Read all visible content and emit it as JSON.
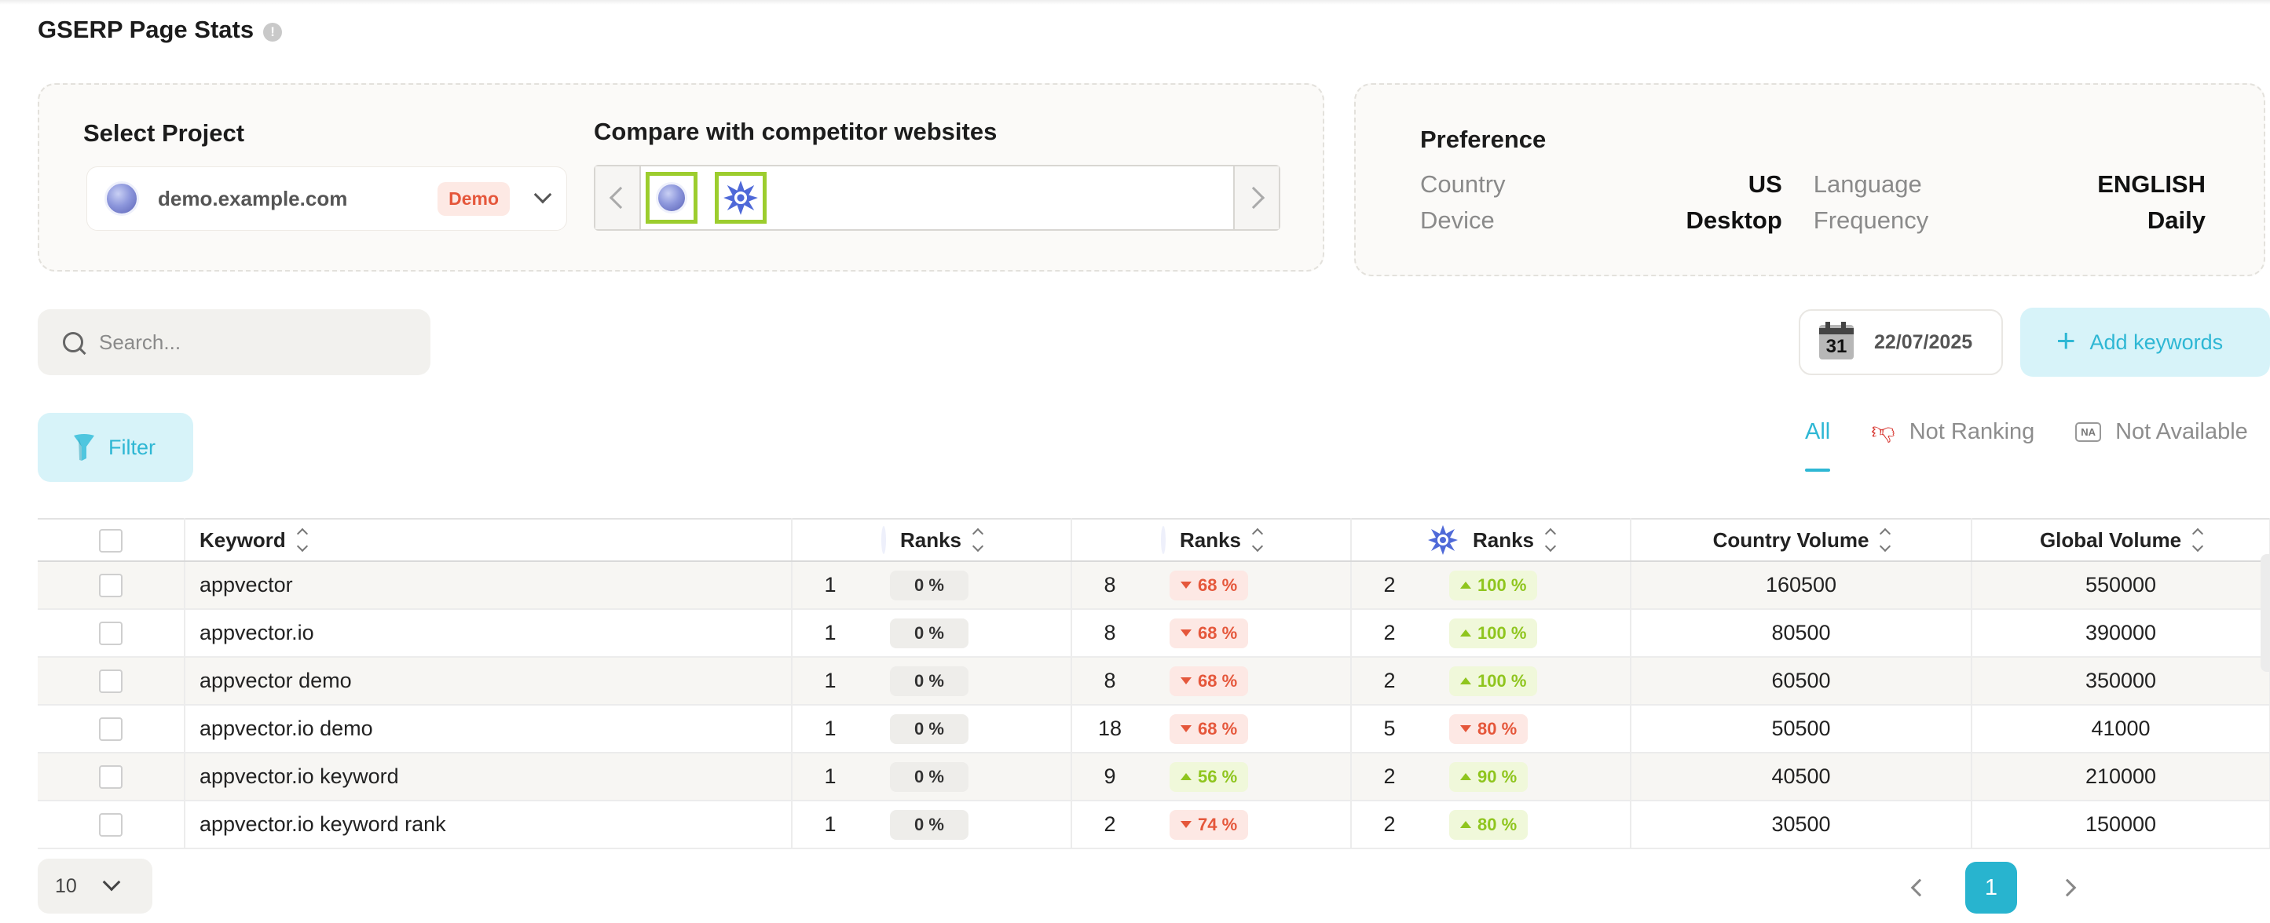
{
  "page": {
    "title": "GSERP Page Stats",
    "info_icon": "!"
  },
  "project": {
    "label": "Select Project",
    "selected": "demo.example.com",
    "badge": "Demo",
    "icon": "globe-icon"
  },
  "competitors": {
    "label": "Compare with competitor websites",
    "items": [
      {
        "icon": "globe-icon"
      },
      {
        "icon": "starburst-icon"
      }
    ]
  },
  "preference": {
    "title": "Preference",
    "country_label": "Country",
    "country_value": "US",
    "language_label": "Language",
    "language_value": "ENGLISH",
    "device_label": "Device",
    "device_value": "Desktop",
    "frequency_label": "Frequency",
    "frequency_value": "Daily"
  },
  "search": {
    "placeholder": "Search..."
  },
  "date": {
    "calendar_day": "31",
    "value": "22/07/2025"
  },
  "actions": {
    "add_keywords": "Add keywords",
    "filter": "Filter"
  },
  "tabs": {
    "all": "All",
    "not_ranking": "Not Ranking",
    "not_available": "Not Available",
    "na_badge": "NA"
  },
  "colors": {
    "accent": "#28b4cf",
    "competitor_border": "#9ccd2e",
    "down": "#e5573b",
    "up": "#8fc51e"
  },
  "table": {
    "headers": {
      "keyword": "Keyword",
      "rank1": "Ranks",
      "rank2": "Ranks",
      "rank3": "Ranks",
      "country_volume": "Country Volume",
      "global_volume": "Global Volume"
    },
    "rows": [
      {
        "keyword": "appvector",
        "r1": "1",
        "p1": "0 %",
        "r2": "8",
        "p2": "68 %",
        "r3": "2",
        "p3": "100 %",
        "cv": "160500",
        "gv": "550000"
      },
      {
        "keyword": "appvector.io",
        "r1": "1",
        "p1": "0 %",
        "r2": "8",
        "p2": "68 %",
        "r3": "2",
        "p3": "100 %",
        "cv": "80500",
        "gv": "390000"
      },
      {
        "keyword": "appvector demo",
        "r1": "1",
        "p1": "0 %",
        "r2": "8",
        "p2": "68 %",
        "r3": "2",
        "p3": "100 %",
        "cv": "60500",
        "gv": "350000"
      },
      {
        "keyword": "appvector.io demo",
        "r1": "1",
        "p1": "0 %",
        "r2": "18",
        "p2": "68 %",
        "r3": "5",
        "p3": "80 %",
        "cv": "50500",
        "gv": "41000"
      },
      {
        "keyword": "appvector.io keyword",
        "r1": "1",
        "p1": "0 %",
        "r2": "9",
        "p2": "56 %",
        "r3": "2",
        "p3": "90 %",
        "cv": "40500",
        "gv": "210000"
      },
      {
        "keyword": "appvector.io keyword rank",
        "r1": "1",
        "p1": "0 %",
        "r2": "2",
        "p2": "74 %",
        "r3": "2",
        "p3": "80 %",
        "cv": "30500",
        "gv": "150000"
      }
    ]
  },
  "pagination": {
    "page_size": "10",
    "current_page": "1"
  }
}
